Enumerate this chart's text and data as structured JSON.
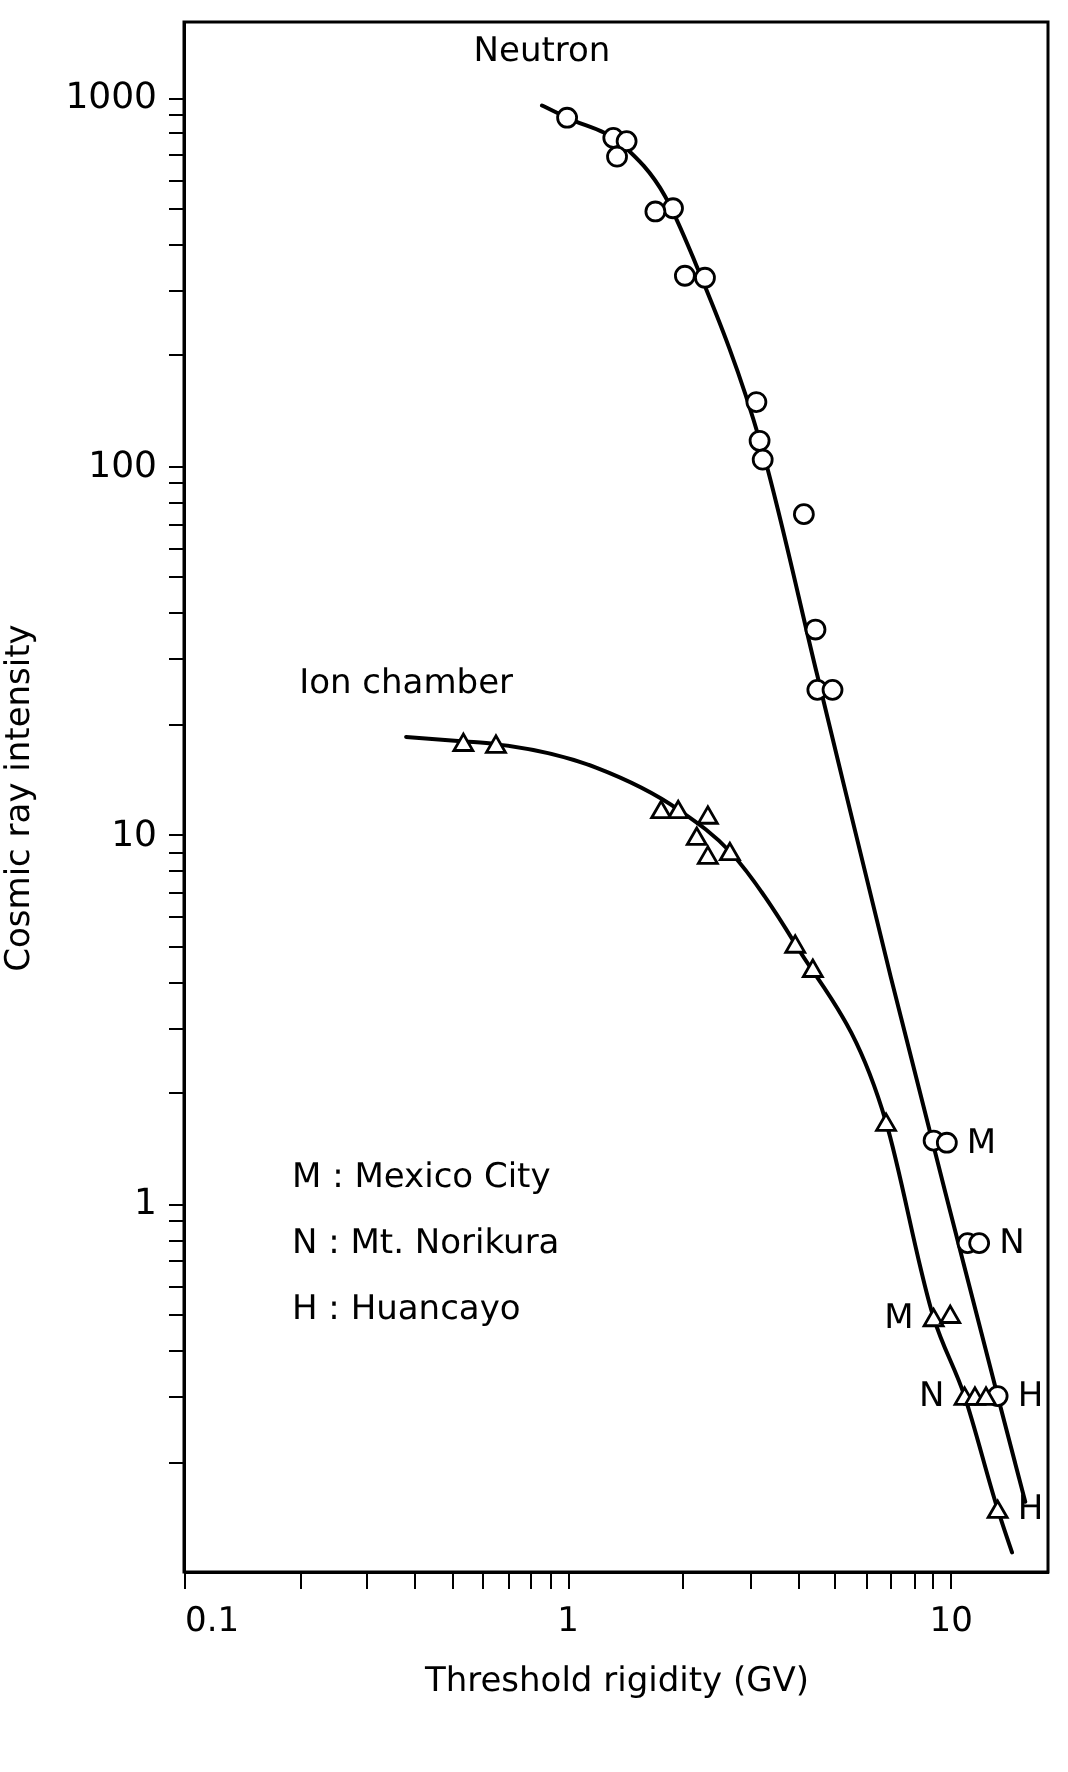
{
  "chart_data": {
    "type": "scatter",
    "xlabel": "Threshold rigidity (GV)",
    "ylabel": "Cosmic ray intensity",
    "log": "xy",
    "grid": false,
    "xlim": [
      0.1,
      18
    ],
    "ylim": [
      0.1,
      1600
    ],
    "xticks": [
      0.1,
      {
        "value": 0.2,
        "label": null
      },
      {
        "value": 0.3,
        "label": null
      },
      {
        "value": 0.4,
        "label": null
      },
      {
        "value": 0.5,
        "label": null
      },
      {
        "value": 0.6,
        "label": null
      },
      {
        "value": 0.7,
        "label": null
      },
      {
        "value": 0.8,
        "label": null
      },
      {
        "value": 0.9,
        "label": null
      },
      1,
      {
        "value": 2,
        "label": null
      },
      {
        "value": 3,
        "label": null
      },
      {
        "value": 4,
        "label": null
      },
      {
        "value": 5,
        "label": null
      },
      {
        "value": 6,
        "label": null
      },
      {
        "value": 7,
        "label": null
      },
      {
        "value": 8,
        "label": null
      },
      {
        "value": 9,
        "label": null
      },
      10
    ],
    "yticks": [
      {
        "value": 0.2,
        "label": null
      },
      {
        "value": 0.3,
        "label": null
      },
      {
        "value": 0.4,
        "label": null
      },
      {
        "value": 0.5,
        "label": null
      },
      {
        "value": 0.6,
        "label": null
      },
      {
        "value": 0.7,
        "label": null
      },
      {
        "value": 0.8,
        "label": null
      },
      {
        "value": 0.9,
        "label": null
      },
      1,
      {
        "value": 2,
        "label": null
      },
      {
        "value": 3,
        "label": null
      },
      {
        "value": 4,
        "label": null
      },
      {
        "value": 5,
        "label": null
      },
      {
        "value": 6,
        "label": null
      },
      {
        "value": 7,
        "label": null
      },
      {
        "value": 8,
        "label": null
      },
      {
        "value": 9,
        "label": null
      },
      10,
      {
        "value": 20,
        "label": null
      },
      {
        "value": 30,
        "label": null
      },
      {
        "value": 40,
        "label": null
      },
      {
        "value": 50,
        "label": null
      },
      {
        "value": 60,
        "label": null
      },
      {
        "value": 70,
        "label": null
      },
      {
        "value": 80,
        "label": null
      },
      {
        "value": 90,
        "label": null
      },
      100,
      {
        "value": 200,
        "label": null
      },
      {
        "value": 300,
        "label": null
      },
      {
        "value": 400,
        "label": null
      },
      {
        "value": 500,
        "label": null
      },
      {
        "value": 600,
        "label": null
      },
      {
        "value": 700,
        "label": null
      },
      {
        "value": 800,
        "label": null
      },
      {
        "value": 900,
        "label": null
      },
      1000
    ],
    "series": [
      {
        "type": "line",
        "name": "Neutron",
        "line_style": "solid",
        "color": "#000000",
        "x": [
          0.86,
          1.0,
          1.4,
          1.8,
          2.2,
          3.2,
          4.5,
          7,
          10,
          13.3,
          15.7
        ],
        "values": [
          950,
          880,
          740,
          540,
          340,
          115,
          27,
          4.1,
          0.95,
          0.3,
          0.155
        ]
      },
      {
        "type": "line",
        "name": "Ion chamber",
        "line_style": "solid",
        "color": "#000000",
        "x": [
          0.38,
          0.54,
          0.65,
          1.19,
          1.95,
          2.66,
          3.94,
          6.8,
          9.05,
          10.9,
          13.3,
          14.5
        ],
        "values": [
          18.4,
          17.9,
          17.6,
          15.2,
          11.7,
          9.0,
          5.05,
          1.66,
          0.49,
          0.3,
          0.148,
          0.113
        ]
      },
      {
        "marker": "circle",
        "color": "#000000",
        "x": [
          1.0,
          1.32,
          1.43,
          1.35,
          1.89,
          1.7,
          2.03,
          2.29,
          3.12,
          3.18,
          3.24,
          4.15,
          4.45,
          4.5,
          4.93,
          9.05,
          9.8,
          11.1,
          11.9,
          13.3
        ],
        "values": [
          880,
          776,
          760,
          690,
          500,
          490,
          328,
          324,
          149,
          117,
          104,
          74,
          36,
          24.7,
          24.7,
          1.48,
          1.46,
          0.78,
          0.78,
          0.3
        ]
      },
      {
        "marker": "triangle",
        "color": "#000000",
        "x": [
          0.536,
          0.652,
          1.76,
          1.95,
          2.33,
          2.18,
          2.33,
          2.66,
          3.94,
          4.38,
          6.8,
          9.05,
          10.0,
          10.9,
          11.6,
          12.4,
          13.3
        ],
        "values": [
          17.8,
          17.6,
          11.7,
          11.7,
          11.3,
          9.9,
          8.8,
          9.0,
          5.05,
          4.34,
          1.66,
          0.49,
          0.5,
          0.3,
          0.3,
          0.3,
          0.148
        ]
      }
    ],
    "annotations": [
      {
        "text": "M",
        "x": 9.8,
        "y": 1.46
      },
      {
        "text": "N",
        "x": 11.9,
        "y": 0.78
      },
      {
        "text": "H",
        "x": 13.3,
        "y": 0.3
      },
      {
        "text": "M",
        "x": 9.05,
        "y": 0.49
      },
      {
        "text": "N",
        "x": 10.9,
        "y": 0.3
      },
      {
        "text": "H",
        "x": 13.3,
        "y": 0.148
      },
      "M : Mexico City",
      "N : Mt. Norikura",
      "H : Huancayo"
    ]
  }
}
